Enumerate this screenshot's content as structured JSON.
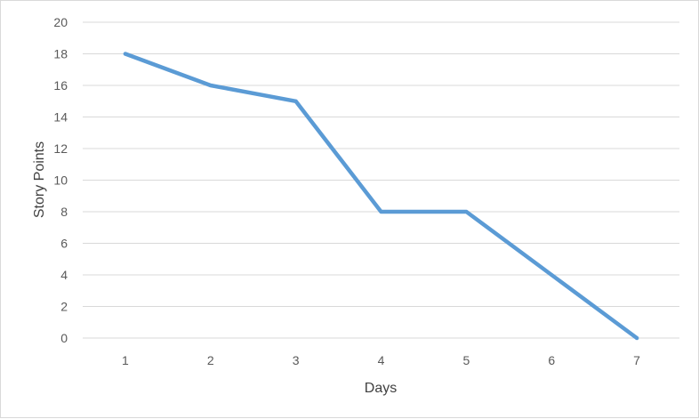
{
  "chart_data": {
    "type": "line",
    "title": "",
    "xlabel": "Days",
    "ylabel": "Story Points",
    "categories": [
      "1",
      "2",
      "3",
      "4",
      "5",
      "6",
      "7"
    ],
    "series": [
      {
        "values": [
          18,
          16,
          15,
          8,
          8,
          4,
          0
        ],
        "color": "#5b9bd5"
      }
    ],
    "ylim": [
      0,
      20
    ],
    "yticks": [
      "0",
      "2",
      "4",
      "6",
      "8",
      "10",
      "12",
      "14",
      "16",
      "18",
      "20"
    ],
    "grid": true,
    "gridColor": "#d9d9d9",
    "legend": "none"
  }
}
